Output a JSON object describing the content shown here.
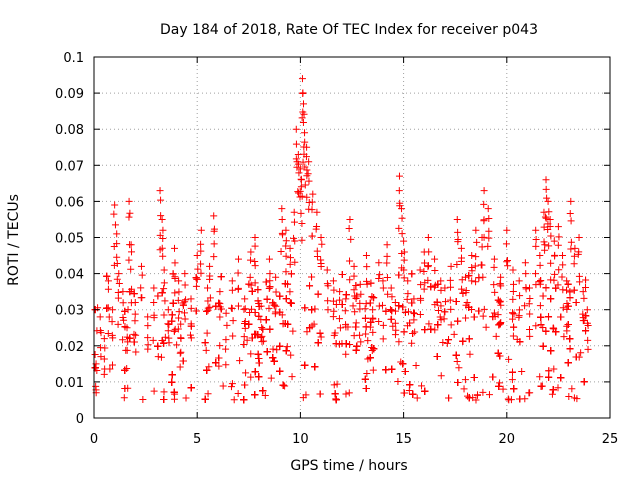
{
  "chart_data": {
    "type": "scatter",
    "title": "Day 184 of 2018, Rate Of TEC Index for receiver p043",
    "xlabel": "GPS time / hours",
    "ylabel": "ROTI / TECUs",
    "xlim": [
      0,
      25
    ],
    "ylim": [
      0,
      0.1
    ],
    "xticks": [
      "0",
      "5",
      "10",
      "15",
      "20",
      "25"
    ],
    "yticks": [
      "0",
      "0.01",
      "0.02",
      "0.03",
      "0.04",
      "0.05",
      "0.06",
      "0.07",
      "0.08",
      "0.09",
      "0.1"
    ],
    "grid": true,
    "marker": "+",
    "series": [
      {
        "name": "ROTI",
        "color": "#ff0000",
        "x": [
          0.1,
          0.3,
          0.5,
          0.7,
          0.9,
          1.0,
          1.1,
          1.2,
          1.4,
          1.6,
          1.7,
          1.8,
          2.0,
          2.3,
          2.6,
          2.9,
          3.2,
          3.3,
          3.4,
          3.6,
          3.9,
          4.1,
          4.2,
          4.4,
          4.7,
          5.0,
          5.2,
          5.5,
          5.6,
          5.8,
          6.1,
          6.4,
          6.7,
          7.0,
          7.3,
          7.6,
          7.8,
          8.1,
          8.5,
          8.8,
          9.1,
          9.3,
          9.5,
          9.7,
          9.8,
          9.9,
          10.0,
          10.05,
          10.1,
          10.15,
          10.2,
          10.3,
          10.4,
          10.6,
          10.8,
          11.0,
          11.3,
          11.6,
          11.9,
          12.2,
          12.4,
          12.6,
          12.9,
          13.2,
          13.5,
          13.8,
          14.0,
          14.2,
          14.4,
          14.6,
          14.8,
          14.9,
          15.0,
          15.2,
          15.5,
          15.8,
          16.0,
          16.2,
          16.5,
          16.8,
          17.0,
          17.3,
          17.6,
          17.8,
          18.0,
          18.3,
          18.5,
          18.8,
          18.9,
          19.1,
          19.4,
          19.7,
          20.0,
          20.3,
          20.6,
          20.9,
          21.1,
          21.4,
          21.6,
          21.8,
          21.9,
          22.0,
          22.1,
          22.3,
          22.5,
          22.7,
          22.9,
          23.1,
          23.3,
          23.5,
          23.7,
          23.9
        ],
        "y": [
          0.015,
          0.028,
          0.022,
          0.038,
          0.03,
          0.059,
          0.051,
          0.04,
          0.035,
          0.025,
          0.06,
          0.048,
          0.032,
          0.042,
          0.028,
          0.036,
          0.063,
          0.055,
          0.041,
          0.03,
          0.047,
          0.038,
          0.026,
          0.04,
          0.033,
          0.045,
          0.052,
          0.036,
          0.042,
          0.056,
          0.035,
          0.029,
          0.038,
          0.044,
          0.033,
          0.046,
          0.05,
          0.031,
          0.044,
          0.039,
          0.058,
          0.052,
          0.047,
          0.057,
          0.08,
          0.073,
          0.069,
          0.066,
          0.094,
          0.087,
          0.079,
          0.075,
          0.071,
          0.062,
          0.057,
          0.05,
          0.041,
          0.038,
          0.035,
          0.033,
          0.055,
          0.042,
          0.037,
          0.045,
          0.03,
          0.043,
          0.038,
          0.048,
          0.036,
          0.032,
          0.067,
          0.058,
          0.049,
          0.038,
          0.033,
          0.041,
          0.046,
          0.05,
          0.044,
          0.038,
          0.036,
          0.042,
          0.055,
          0.047,
          0.039,
          0.045,
          0.052,
          0.05,
          0.063,
          0.058,
          0.044,
          0.039,
          0.052,
          0.041,
          0.038,
          0.043,
          0.036,
          0.052,
          0.045,
          0.057,
          0.066,
          0.06,
          0.055,
          0.049,
          0.053,
          0.045,
          0.038,
          0.06,
          0.047,
          0.05,
          0.035,
          0.03
        ]
      }
    ]
  }
}
